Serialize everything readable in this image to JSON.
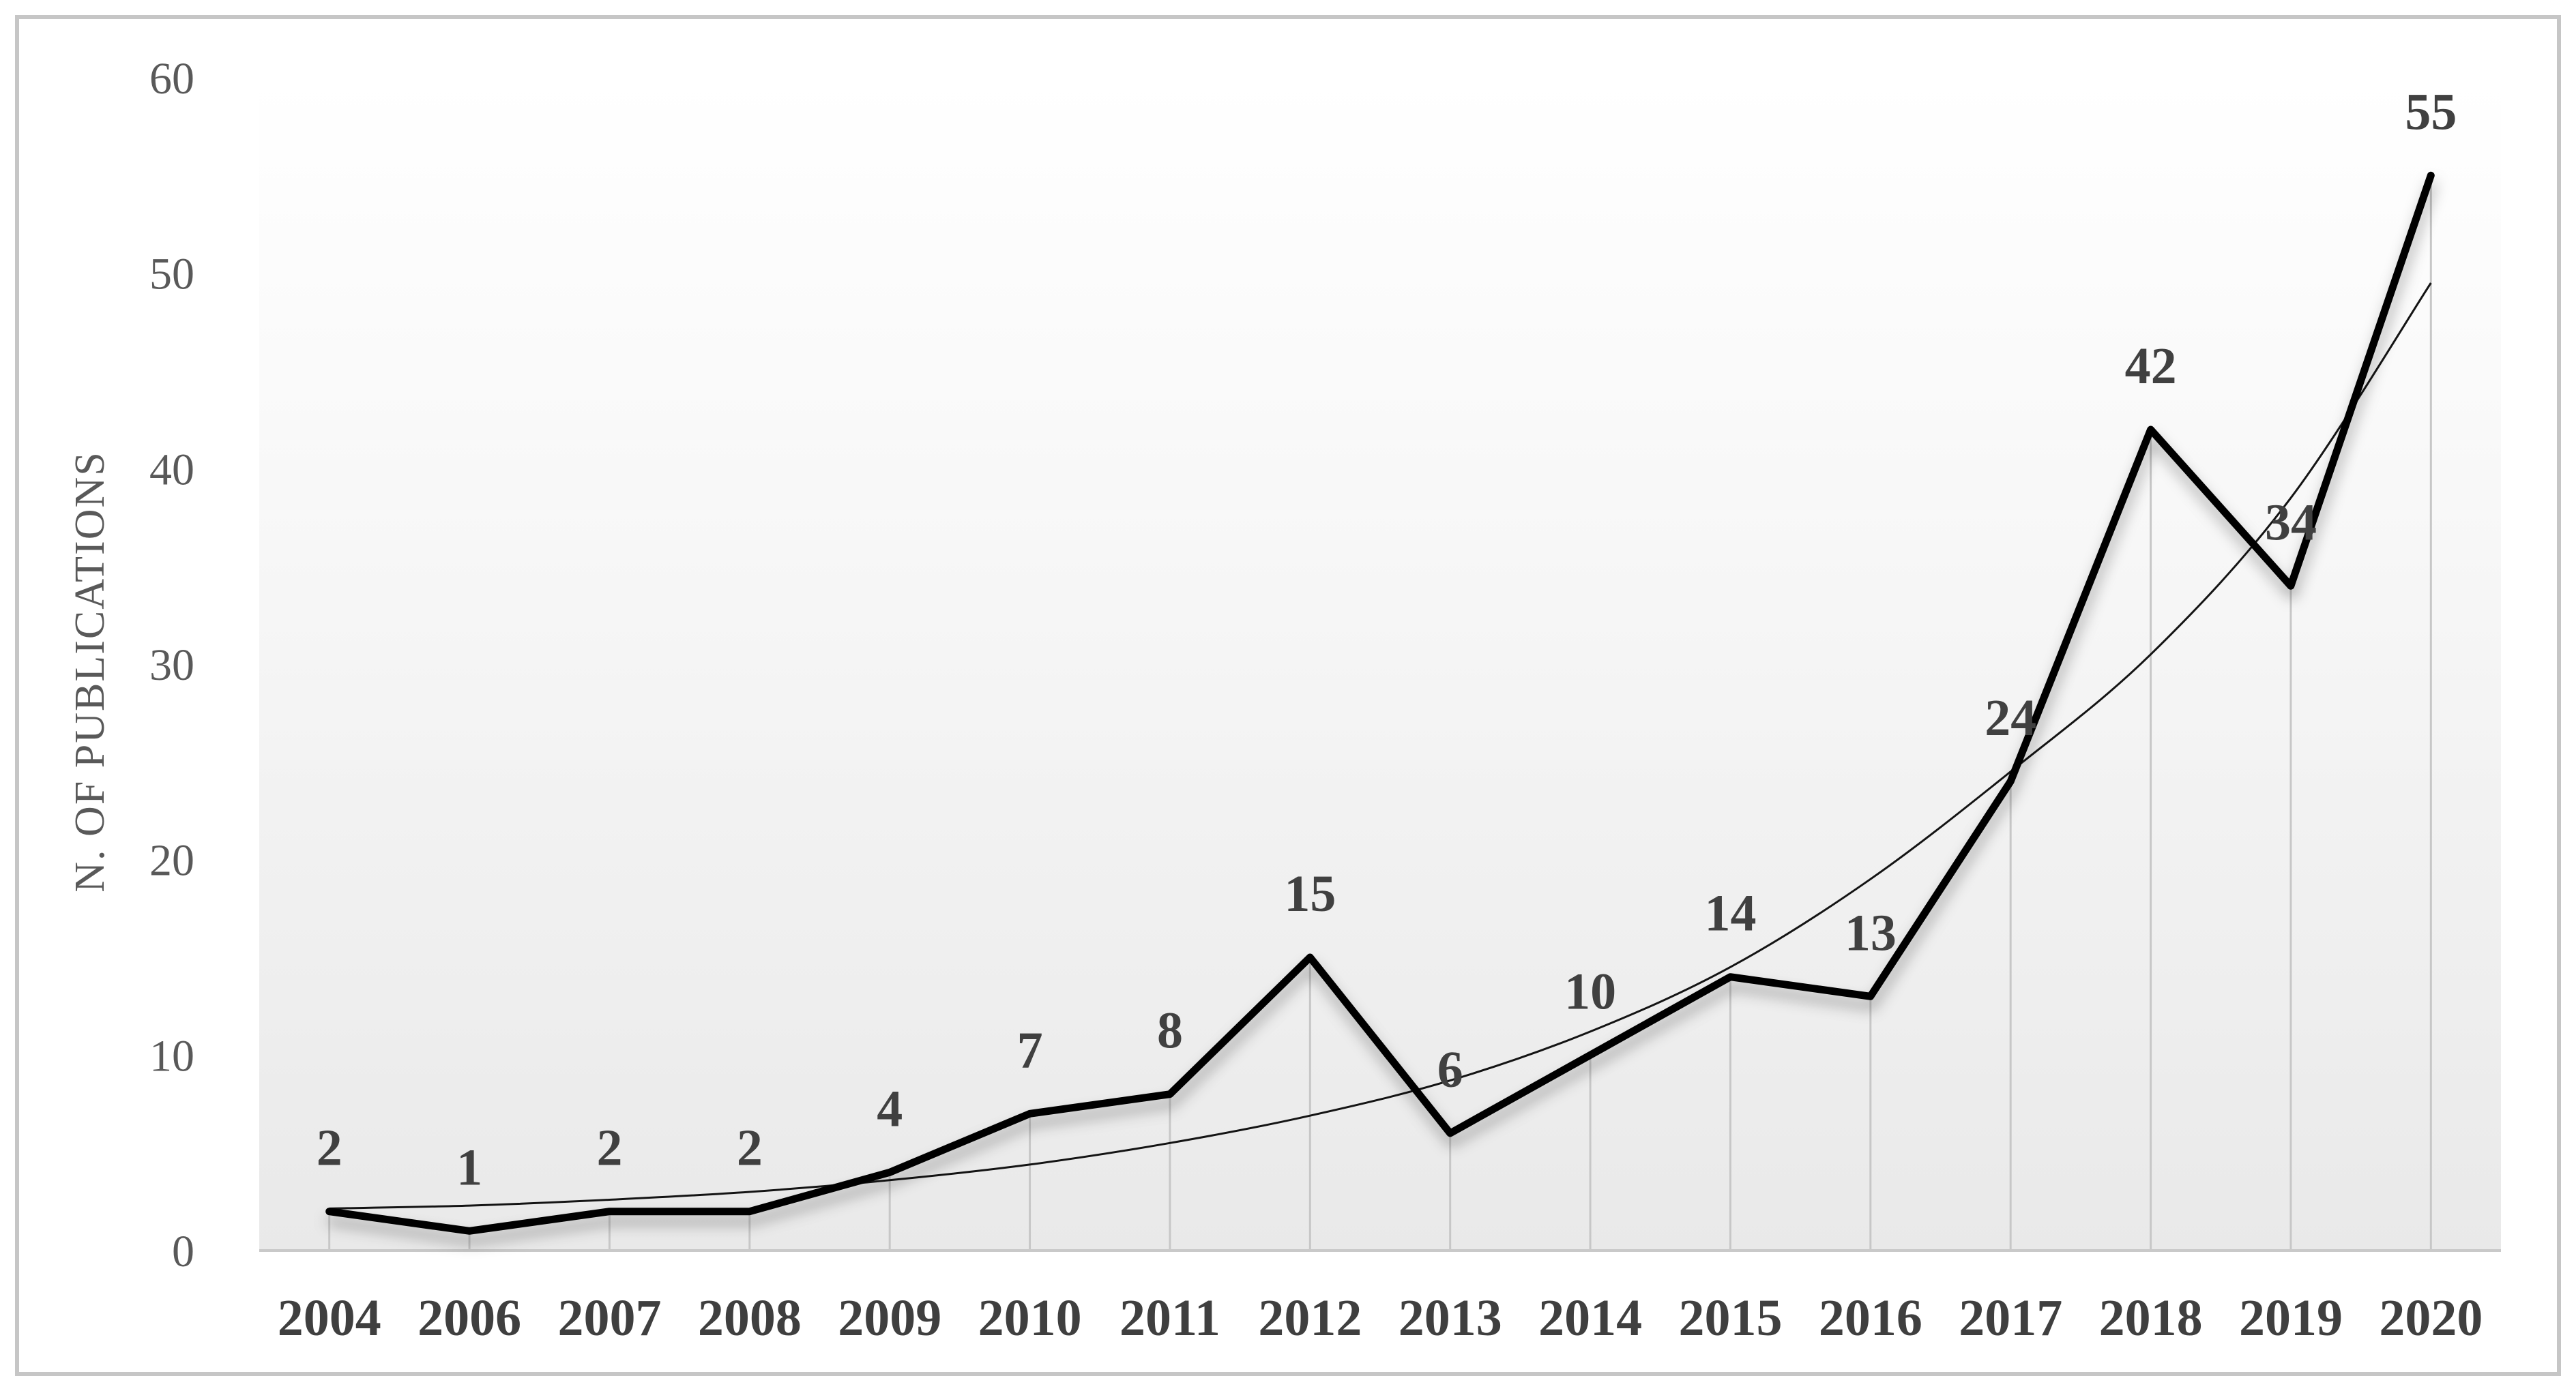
{
  "figure": {
    "border_color": "#c6c6c6",
    "background_color": "#ffffff",
    "plot_gradient_top": "#ffffff",
    "plot_gradient_mid": "#f6f6f6",
    "plot_gradient_bottom": "#e9e9e9",
    "dropline_color": "#c7c7c7",
    "axis_line_color": "#c9c9c9",
    "tick_label_color": "#595959",
    "axis_label_color": "#3f3f3f",
    "data_label_color": "#404040"
  },
  "chart_data": {
    "type": "line",
    "title": "",
    "xlabel": "",
    "ylabel": "N. OF PUBLICATIONS",
    "ylim": [
      0,
      60
    ],
    "yticks": [
      0,
      10,
      20,
      30,
      40,
      50,
      60
    ],
    "grid": "vertical droplines from each data point to category axis",
    "legend": "none",
    "categories": [
      "2004",
      "2006",
      "2007",
      "2008",
      "2009",
      "2010",
      "2011",
      "2012",
      "2013",
      "2014",
      "2015",
      "2016",
      "2017",
      "2018",
      "2019",
      "2020"
    ],
    "series": [
      {
        "name": "publications",
        "style": "thick-black-line-with-shadow",
        "color": "#000000",
        "values": [
          2,
          1,
          2,
          2,
          4,
          7,
          8,
          15,
          6,
          10,
          14,
          13,
          24,
          42,
          34,
          55
        ],
        "data_labels": [
          "2",
          "1",
          "2",
          "2",
          "4",
          "7",
          "8",
          "15",
          "6",
          "10",
          "14",
          "13",
          "24",
          "42",
          "34",
          "55"
        ]
      },
      {
        "name": "trendline",
        "style": "thin-smooth-curve",
        "color": "#141414",
        "values_estimated": [
          2.15,
          2.3,
          2.6,
          3.0,
          3.6,
          4.4,
          5.5,
          6.9,
          8.7,
          11.2,
          14.5,
          19.0,
          24.5,
          30.5,
          38.5,
          49.5
        ]
      }
    ]
  }
}
